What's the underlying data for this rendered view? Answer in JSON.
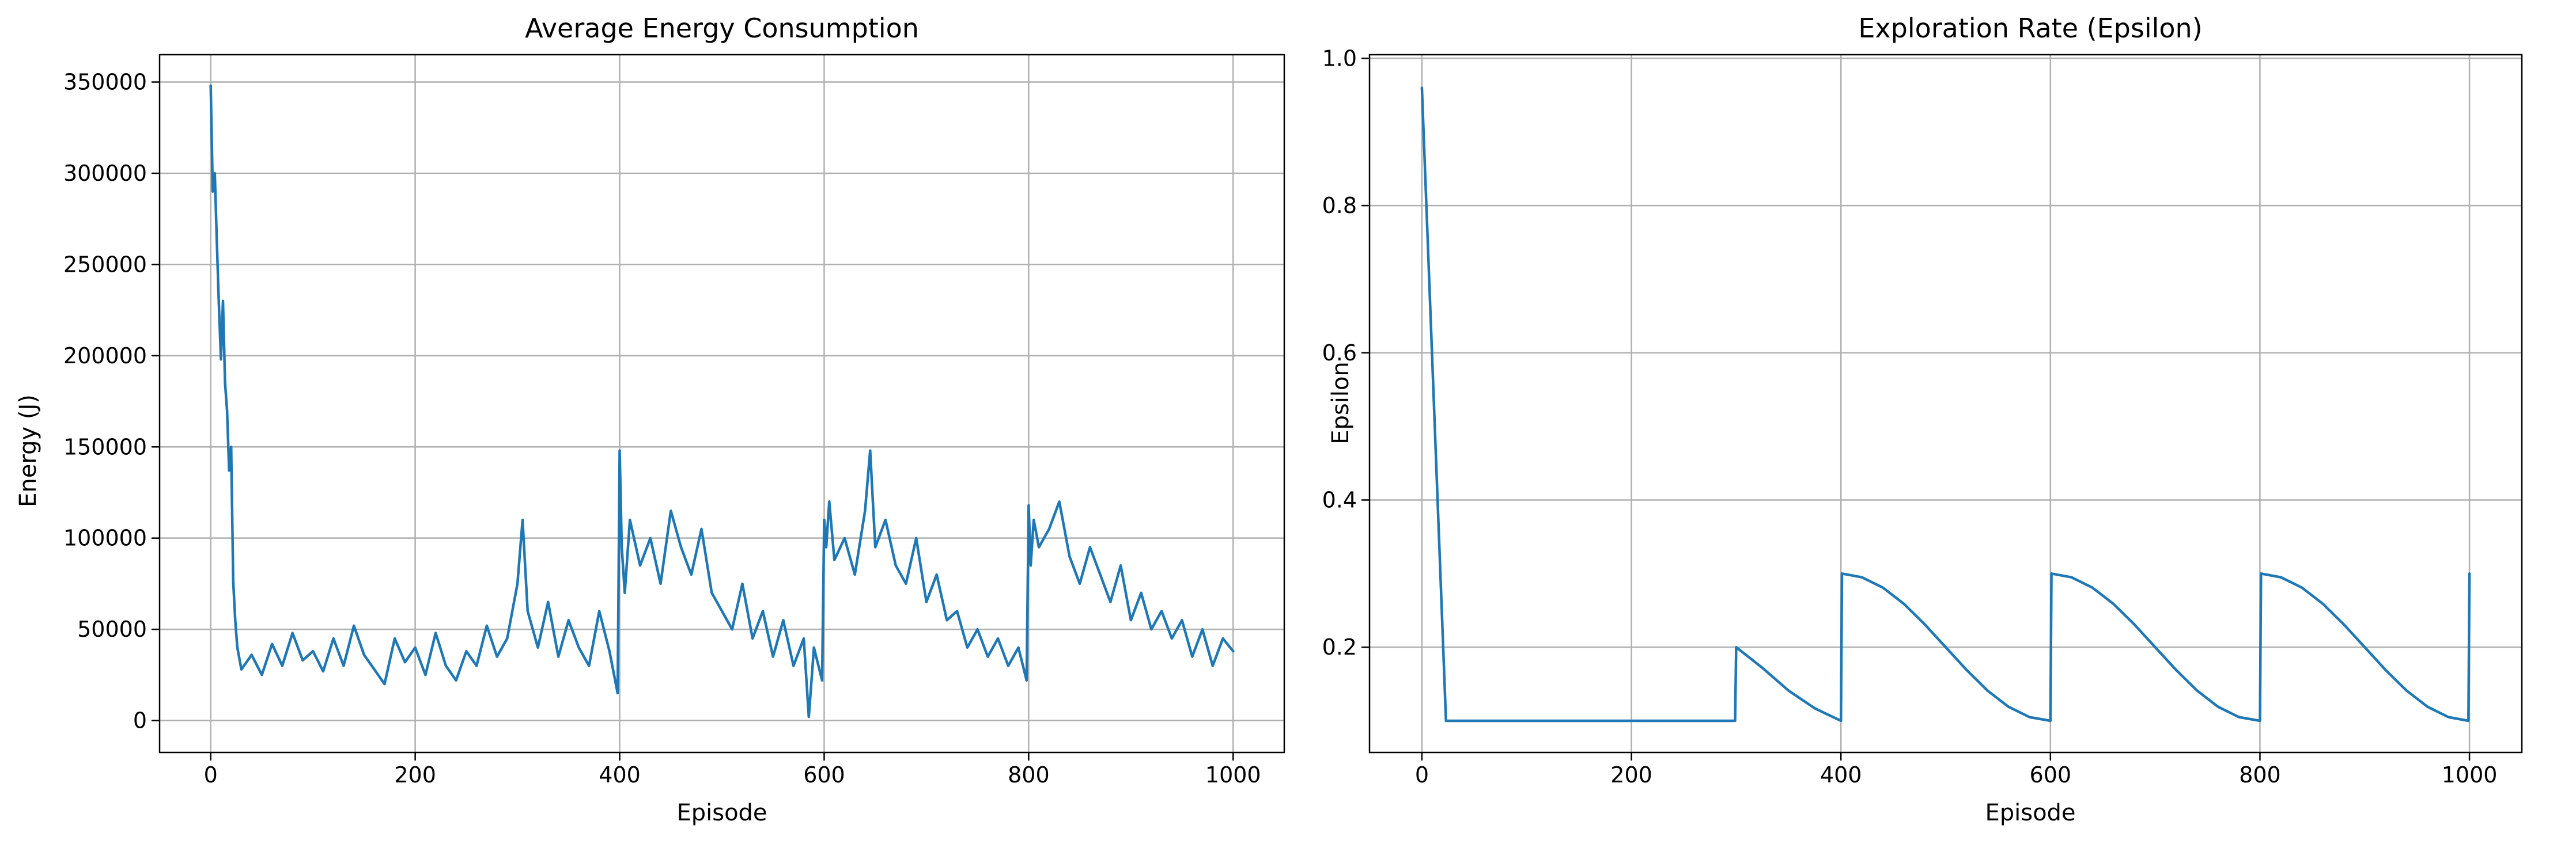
{
  "colors": {
    "series": "#1f77b4",
    "grid": "#b0b0b0",
    "axis": "#000000",
    "background": "#ffffff"
  },
  "chart_data": [
    {
      "type": "line",
      "title": "Average Energy Consumption",
      "xlabel": "Episode",
      "ylabel": "Energy (J)",
      "xlim": [
        -50,
        1050
      ],
      "ylim": [
        -17500,
        365000
      ],
      "grid": true,
      "xticks": [
        0,
        200,
        400,
        600,
        800,
        1000
      ],
      "xtick_labels": [
        "0",
        "200",
        "400",
        "600",
        "800",
        "1000"
      ],
      "yticks": [
        0,
        50000,
        100000,
        150000,
        200000,
        250000,
        300000,
        350000
      ],
      "ytick_labels": [
        "0",
        "50000",
        "100000",
        "150000",
        "200000",
        "250000",
        "300000",
        "350000"
      ],
      "series": [
        {
          "x": [
            0,
            2,
            4,
            6,
            8,
            10,
            12,
            14,
            16,
            18,
            20,
            22,
            24,
            26,
            30,
            40,
            50,
            60,
            70,
            80,
            90,
            100,
            110,
            120,
            130,
            140,
            150,
            160,
            170,
            180,
            190,
            200,
            210,
            220,
            230,
            240,
            250,
            260,
            270,
            280,
            290,
            300,
            305,
            310,
            320,
            330,
            340,
            350,
            360,
            370,
            380,
            390,
            398,
            400,
            402,
            405,
            410,
            420,
            430,
            440,
            450,
            460,
            470,
            480,
            490,
            500,
            510,
            520,
            530,
            540,
            550,
            560,
            570,
            580,
            585,
            590,
            598,
            600,
            602,
            605,
            610,
            620,
            630,
            640,
            645,
            650,
            660,
            670,
            680,
            690,
            700,
            710,
            720,
            730,
            740,
            750,
            760,
            770,
            780,
            790,
            798,
            800,
            802,
            805,
            810,
            820,
            830,
            840,
            850,
            860,
            870,
            880,
            890,
            900,
            910,
            920,
            930,
            940,
            950,
            960,
            970,
            980,
            990,
            1000
          ],
          "y": [
            348000,
            290000,
            300000,
            262000,
            228000,
            198000,
            230000,
            185000,
            170000,
            137000,
            150000,
            76000,
            55000,
            40000,
            28000,
            36000,
            25000,
            42000,
            30000,
            48000,
            33000,
            38000,
            27000,
            45000,
            30000,
            52000,
            36000,
            28000,
            20000,
            45000,
            32000,
            40000,
            25000,
            48000,
            30000,
            22000,
            38000,
            30000,
            52000,
            35000,
            45000,
            75000,
            110000,
            60000,
            40000,
            65000,
            35000,
            55000,
            40000,
            30000,
            60000,
            38000,
            15000,
            148000,
            95000,
            70000,
            110000,
            85000,
            100000,
            75000,
            115000,
            95000,
            80000,
            105000,
            70000,
            60000,
            50000,
            75000,
            45000,
            60000,
            35000,
            55000,
            30000,
            45000,
            2000,
            40000,
            22000,
            110000,
            95000,
            120000,
            88000,
            100000,
            80000,
            115000,
            148000,
            95000,
            110000,
            85000,
            75000,
            100000,
            65000,
            80000,
            55000,
            60000,
            40000,
            50000,
            35000,
            45000,
            30000,
            40000,
            22000,
            118000,
            85000,
            110000,
            95000,
            105000,
            120000,
            90000,
            75000,
            95000,
            80000,
            65000,
            85000,
            55000,
            70000,
            50000,
            60000,
            45000,
            55000,
            35000,
            50000,
            30000,
            45000,
            38000
          ]
        }
      ]
    },
    {
      "type": "line",
      "title": "Exploration Rate (Epsilon)",
      "xlabel": "Episode",
      "ylabel": "Epsilon",
      "xlim": [
        -50,
        1050
      ],
      "ylim": [
        0.057,
        1.005
      ],
      "grid": true,
      "xticks": [
        0,
        200,
        400,
        600,
        800,
        1000
      ],
      "xtick_labels": [
        "0",
        "200",
        "400",
        "600",
        "800",
        "1000"
      ],
      "yticks": [
        0.2,
        0.4,
        0.6,
        0.8,
        1.0
      ],
      "ytick_labels": [
        "0.2",
        "0.4",
        "0.6",
        "0.8",
        "1.0"
      ],
      "series": [
        {
          "x": [
            0,
            23,
            100,
            200,
            299,
            300,
            325,
            350,
            375,
            400,
            401,
            420,
            440,
            460,
            480,
            500,
            520,
            540,
            560,
            580,
            600,
            601,
            620,
            640,
            660,
            680,
            700,
            720,
            740,
            760,
            780,
            800,
            801,
            820,
            840,
            860,
            880,
            900,
            920,
            940,
            960,
            980,
            999,
            1000
          ],
          "y": [
            0.96,
            0.1,
            0.1,
            0.1,
            0.1,
            0.2,
            0.172,
            0.141,
            0.117,
            0.1,
            0.3,
            0.295,
            0.281,
            0.259,
            0.231,
            0.2,
            0.169,
            0.141,
            0.119,
            0.105,
            0.1,
            0.3,
            0.295,
            0.281,
            0.259,
            0.231,
            0.2,
            0.169,
            0.141,
            0.119,
            0.105,
            0.1,
            0.3,
            0.295,
            0.281,
            0.259,
            0.231,
            0.2,
            0.169,
            0.141,
            0.119,
            0.105,
            0.1,
            0.3
          ]
        }
      ]
    }
  ]
}
